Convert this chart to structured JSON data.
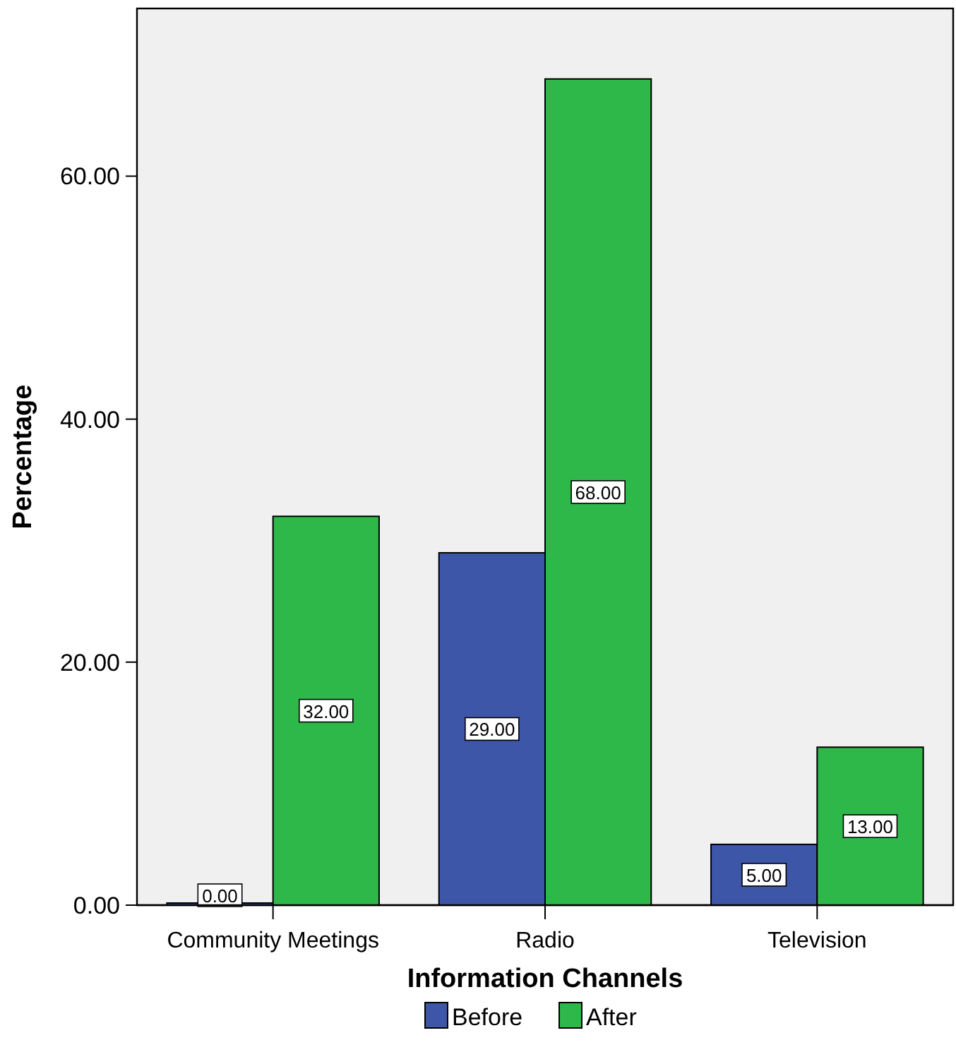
{
  "chart_data": {
    "type": "bar",
    "xlabel": "Information Channels",
    "ylabel": "Percentage",
    "categories": [
      "Community Meetings",
      "Radio",
      "Television"
    ],
    "series": [
      {
        "name": "Before",
        "color": "#3e56a8",
        "values": [
          0,
          29,
          5
        ],
        "value_labels": [
          "0.00",
          "29.00",
          "5.00"
        ]
      },
      {
        "name": "After",
        "color": "#2eb84a",
        "values": [
          32,
          68,
          13
        ],
        "value_labels": [
          "32.00",
          "68.00",
          "13.00"
        ]
      }
    ],
    "ylim": [
      0,
      73.8
    ],
    "yticks": [
      {
        "value": 0,
        "label": "0.00"
      },
      {
        "value": 20,
        "label": "20.00"
      },
      {
        "value": 40,
        "label": "40.00"
      },
      {
        "value": 60,
        "label": "60.00"
      }
    ],
    "grid": false,
    "legend": "bottom"
  }
}
